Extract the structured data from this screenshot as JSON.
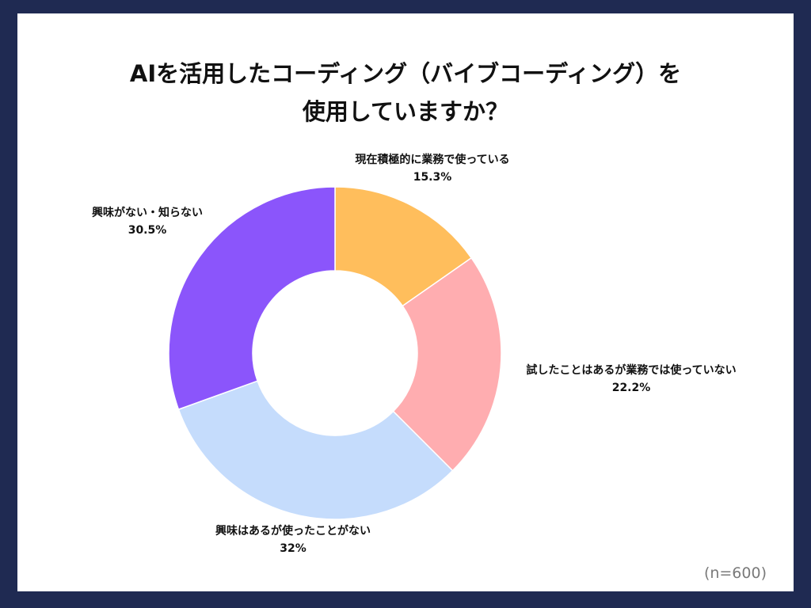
{
  "chart_data": {
    "type": "pie",
    "title_lines": [
      "AIを活用したコーディング（バイブコーディング）を",
      "使用していますか？"
    ],
    "note": "(n=600)",
    "slices": [
      {
        "label": "現在積極的に業務で使っている",
        "value": 15.3,
        "value_label": "15.3%",
        "color": "#ffbe5c"
      },
      {
        "label": "試したことはあるが業務では使っていない",
        "value": 22.2,
        "value_label": "22.2%",
        "color": "#ffadb0"
      },
      {
        "label": "興味はあるが使ったことがない",
        "value": 32,
        "value_label": "32%",
        "color": "#c5dcfc"
      },
      {
        "label": "興味がない・知らない",
        "value": 30.5,
        "value_label": "30.5%",
        "color": "#8b55fb"
      }
    ]
  }
}
